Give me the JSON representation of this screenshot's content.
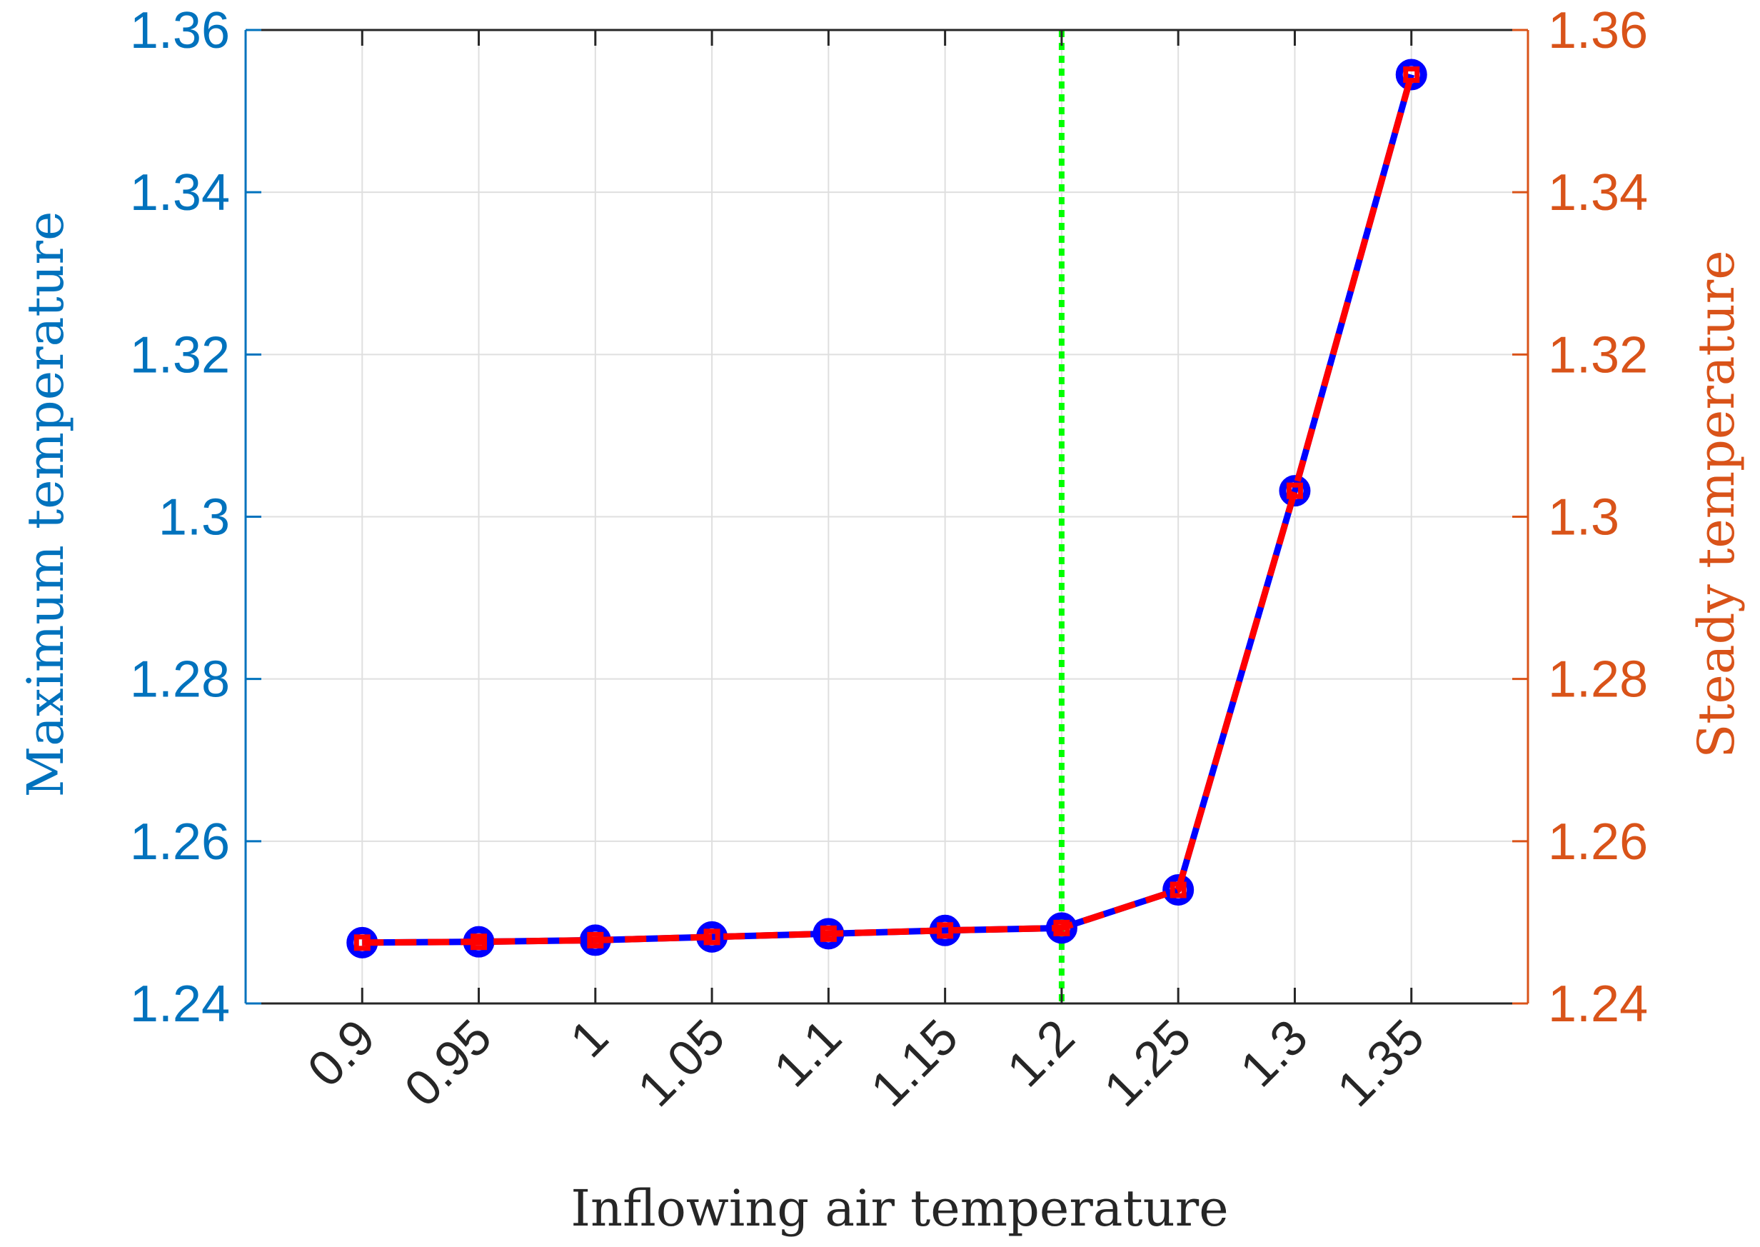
{
  "chart_data": {
    "type": "line",
    "xlabel": "Inflowing air temperature",
    "ylabel_left": "Maximum temperature",
    "ylabel_right": "Steady temperature",
    "x": [
      0.9,
      0.95,
      1,
      1.05,
      1.1,
      1.15,
      1.2,
      1.25,
      1.3,
      1.35
    ],
    "x_tick_labels": [
      "0.9",
      "0.95",
      "1",
      "1.05",
      "1.1",
      "1.15",
      "1.2",
      "1.25",
      "1.3",
      "1.35"
    ],
    "xlim": [
      0.85,
      1.4
    ],
    "ylim_left": [
      1.24,
      1.36
    ],
    "ylim_right": [
      1.24,
      1.36
    ],
    "y_tick_values": [
      1.24,
      1.26,
      1.28,
      1.3,
      1.32,
      1.34,
      1.36
    ],
    "y_tick_labels": [
      "1.24",
      "1.26",
      "1.28",
      "1.3",
      "1.32",
      "1.34",
      "1.36"
    ],
    "series": [
      {
        "axis": "left",
        "color": "#0000ff",
        "line_style": "solid",
        "marker": "circle",
        "values": [
          1.2475,
          1.2476,
          1.2478,
          1.2482,
          1.2486,
          1.249,
          1.2493,
          1.254,
          1.3032,
          1.3545
        ]
      },
      {
        "axis": "right",
        "color": "#ff0000",
        "line_style": "dashed",
        "marker": "square",
        "values": [
          1.2475,
          1.2476,
          1.2478,
          1.2482,
          1.2486,
          1.249,
          1.2493,
          1.254,
          1.3032,
          1.3545
        ]
      }
    ],
    "vertical_marker": {
      "x": 1.2,
      "color": "#00ff00",
      "line_style": "dotted"
    },
    "grid": true,
    "colors": {
      "left_axis": "#0072bd",
      "right_axis": "#d95319",
      "grid": "#dfdfdf",
      "frame": "#262626"
    }
  }
}
